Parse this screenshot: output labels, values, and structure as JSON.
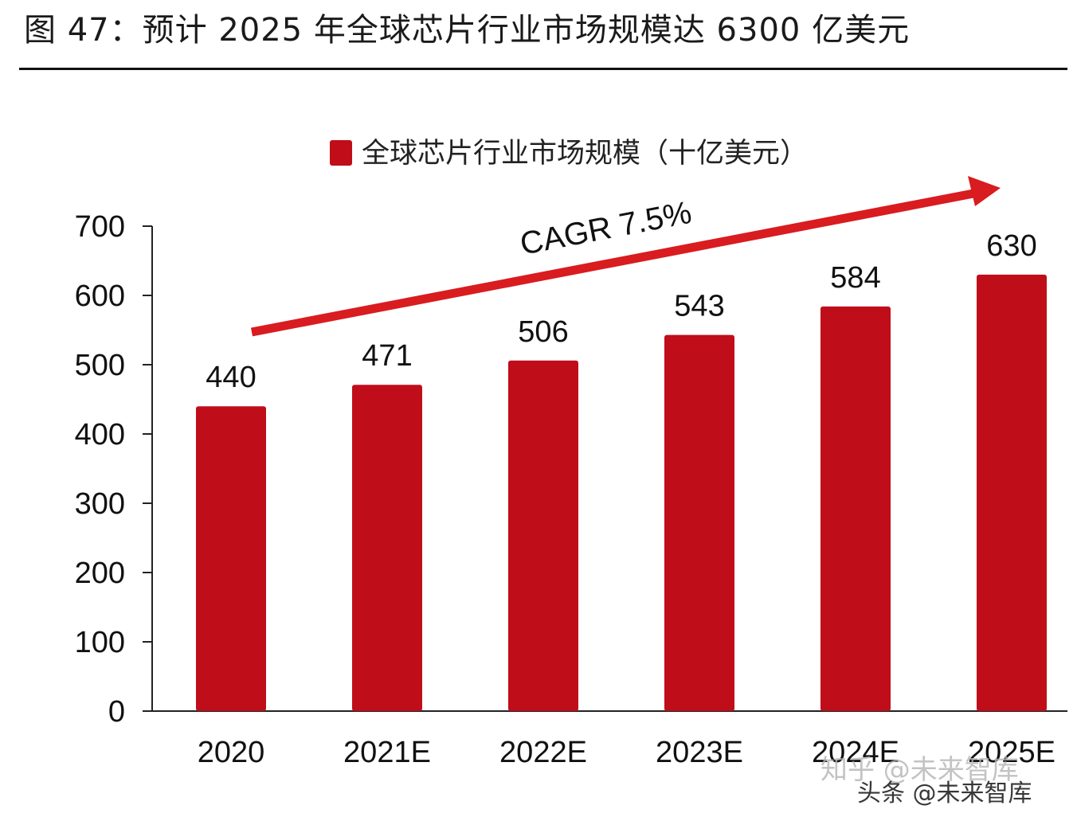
{
  "figure_title": "图 47：预计 2025 年全球芯片行业市场规模达 6300 亿美元",
  "watermark": {
    "line1": "知乎 @未来智库",
    "line2": "头条 @未来智库"
  },
  "chart_data": {
    "type": "bar",
    "categories": [
      "2020",
      "2021E",
      "2022E",
      "2023E",
      "2024E",
      "2025E"
    ],
    "series": [
      {
        "name": "全球芯片行业市场规模（十亿美元）",
        "values": [
          440,
          471,
          506,
          543,
          584,
          630
        ]
      }
    ],
    "data_labels": [
      "440",
      "471",
      "506",
      "543",
      "584",
      "630"
    ],
    "ylim": [
      0,
      700
    ],
    "yticks": [
      0,
      100,
      200,
      300,
      400,
      500,
      600,
      700
    ],
    "ytick_labels": [
      "0",
      "100",
      "200",
      "300",
      "400",
      "500",
      "600",
      "700"
    ],
    "legend_position": "top-center",
    "grid": false,
    "annotation": "CAGR 7.5%",
    "colors": {
      "bar": "#c00d1a",
      "arrow": "#d91c1f"
    }
  }
}
